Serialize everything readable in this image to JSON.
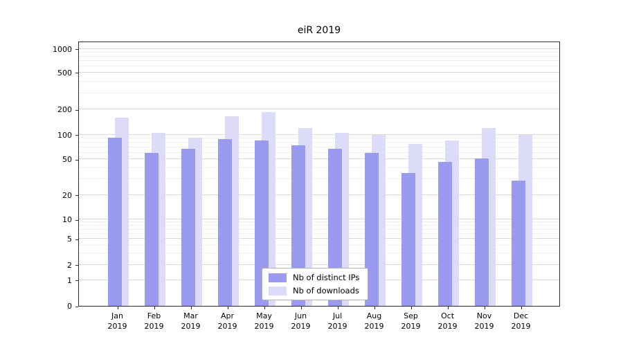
{
  "title": "eiR 2019",
  "colors": {
    "bar_distinct_ips": "#9a9aef",
    "bar_downloads": "#dcdcf8",
    "grid_major": "#d9d9d9",
    "grid_minor": "#efefef",
    "axis": "#2b2b2b",
    "background": "#ffffff",
    "text": "#000000"
  },
  "legend": {
    "items": [
      {
        "label": "Nb of distinct IPs",
        "series": "bar_distinct_ips"
      },
      {
        "label": "Nb of downloads",
        "series": "bar_downloads"
      }
    ]
  },
  "chart_data": {
    "type": "bar",
    "title": "eiR 2019",
    "categories": [
      "Jan 2019",
      "Feb 2019",
      "Mar 2019",
      "Apr 2019",
      "May 2019",
      "Jun 2019",
      "Jul 2019",
      "Aug 2019",
      "Sep 2019",
      "Oct 2019",
      "Nov 2019",
      "Dec 2019"
    ],
    "series": [
      {
        "name": "Nb of distinct IPs",
        "color": "#9a9aef",
        "values": [
          93,
          60,
          68,
          88,
          85,
          75,
          68,
          60,
          35,
          47,
          51,
          29
        ]
      },
      {
        "name": "Nb of downloads",
        "color": "#dcdcf8",
        "values": [
          160,
          105,
          93,
          165,
          185,
          120,
          105,
          100,
          78,
          85,
          120,
          100
        ]
      }
    ],
    "xlabel": "",
    "ylabel": "",
    "yscale": "symlog",
    "yticks": [
      0,
      1,
      2,
      5,
      10,
      20,
      50,
      100,
      200,
      500,
      1000
    ],
    "yminorticks": [
      3,
      4,
      6,
      7,
      8,
      9,
      30,
      40,
      60,
      70,
      80,
      90,
      300,
      400,
      600,
      700,
      800,
      900
    ],
    "ylim": [
      0,
      1000
    ],
    "grid": true,
    "legend_position": "lower center"
  }
}
